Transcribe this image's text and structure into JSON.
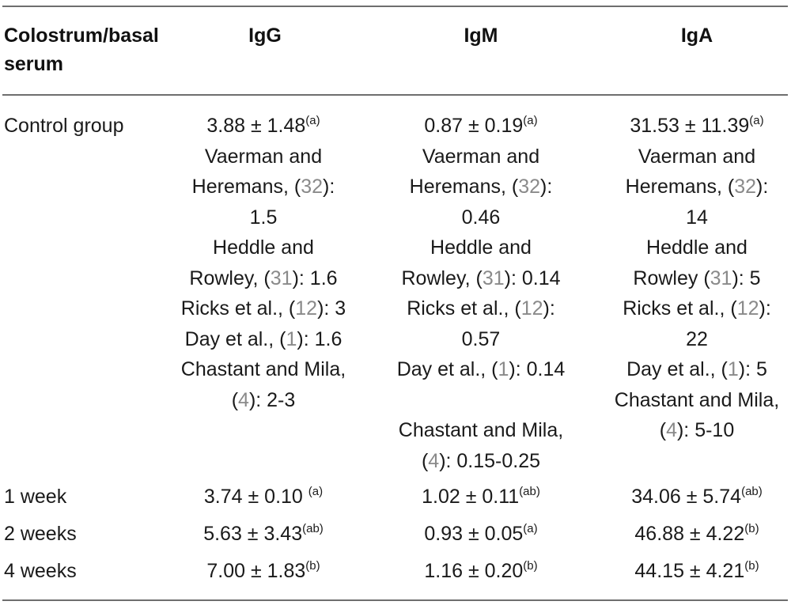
{
  "table": {
    "headers": {
      "row_label": [
        "Colostrum/basal",
        "serum"
      ],
      "igg": "IgG",
      "igm": "IgM",
      "iga": "IgA"
    },
    "control": {
      "label": "Control group",
      "igg": {
        "value": "3.88 ± 1.48",
        "sup": "(a)"
      },
      "igm": {
        "value": "0.87 ± 0.19",
        "sup": "(a)"
      },
      "iga": {
        "value": "31.53 ± 11.39",
        "sup": "(a)"
      },
      "igg_refs": [
        "Vaerman and",
        "Heremans, (",
        "32",
        "):",
        "1.5",
        "Heddle and",
        "Rowley, (",
        "31",
        "): 1.6",
        "Ricks et al., (",
        "12",
        "): 3",
        "Day et al., (",
        "1",
        "): 1.6",
        "Chastant and Mila,",
        "(",
        "4",
        "): 2-3"
      ],
      "igm_refs": [
        "Vaerman and",
        "Heremans, (",
        "32",
        "):",
        "0.46",
        "Heddle and",
        "Rowley, (",
        "31",
        "): 0.14",
        "Ricks et al., (",
        "12",
        "):",
        "0.57",
        "Day et al., (",
        "1",
        "): 0.14",
        "Chastant and Mila,",
        "(",
        "4",
        "): 0.15-0.25"
      ],
      "iga_refs": [
        "Vaerman and",
        "Heremans, (",
        "32",
        "):",
        "14",
        "Heddle and",
        "Rowley (",
        "31",
        "): 5",
        "Ricks et al., (",
        "12",
        "):",
        "22",
        "Day et al., (",
        "1",
        "): 5",
        "Chastant and Mila,",
        "(",
        "4",
        "): 5-10"
      ]
    },
    "rows": [
      {
        "label": "1 week",
        "igg": {
          "value": "3.74 ± 0.10 ",
          "sup": "(a)"
        },
        "igm": {
          "value": "1.02 ± 0.11",
          "sup": "(ab)"
        },
        "iga": {
          "value": "34.06 ± 5.74",
          "sup": "(ab)"
        }
      },
      {
        "label": "2 weeks",
        "igg": {
          "value": "5.63 ± 3.43",
          "sup": "(ab)"
        },
        "igm": {
          "value": "0.93 ± 0.05",
          "sup": "(a)"
        },
        "iga": {
          "value": "46.88 ± 4.22",
          "sup": "(b)"
        }
      },
      {
        "label": "4 weeks",
        "igg": {
          "value": "7.00 ± 1.83",
          "sup": "(b)"
        },
        "igm": {
          "value": "1.16 ± 0.20",
          "sup": "(b)"
        },
        "iga": {
          "value": "44.15 ± 4.21",
          "sup": "(b)"
        }
      }
    ]
  }
}
